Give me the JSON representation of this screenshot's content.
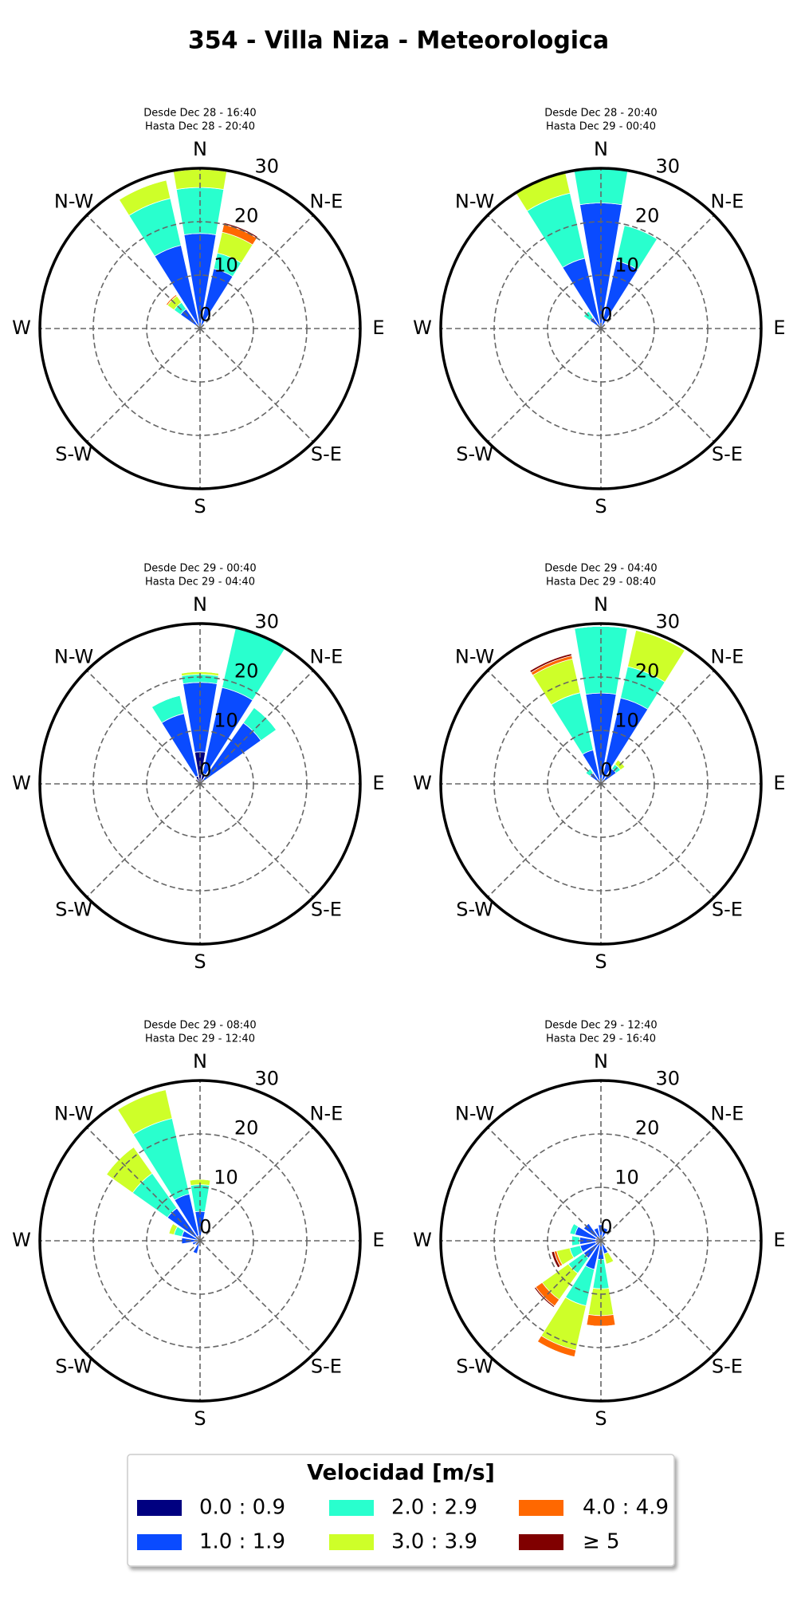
{
  "title": "354 - Villa Niza - Meteorologica",
  "legend": {
    "title": "Velocidad [m/s]",
    "series": [
      {
        "name": "0.0 : 0.9",
        "color": "#000080"
      },
      {
        "name": "1.0 : 1.9",
        "color": "#0a4bff"
      },
      {
        "name": "2.0 : 2.9",
        "color": "#29ffce"
      },
      {
        "name": "3.0 : 3.9",
        "color": "#ceff29"
      },
      {
        "name": "4.0 : 4.9",
        "color": "#ff6800"
      },
      {
        "name": "≥  5",
        "color": "#800000"
      }
    ]
  },
  "chart_data": [
    {
      "type": "windrose",
      "title": "Desde Dec 28 - 16:40",
      "subtitle": "Hasta Dec 28 - 20:40",
      "categories": [
        "N",
        null,
        "N-E",
        null,
        "E",
        null,
        "S-E",
        null,
        "S",
        null,
        "S-W",
        null,
        "W",
        null,
        "N-W",
        null
      ],
      "rlim": [
        0,
        30
      ],
      "rticks": [
        0,
        10,
        20,
        30
      ],
      "grid": true,
      "series": [
        {
          "values": [
            0.5,
            0.5,
            0,
            0,
            0,
            0,
            0,
            0,
            0,
            0,
            0,
            0,
            0,
            0,
            0.5,
            0.5
          ]
        },
        {
          "values": [
            17.3,
            11,
            0,
            0,
            0,
            0,
            0,
            0,
            0,
            0,
            0,
            0,
            0,
            0,
            4,
            15.5
          ]
        },
        {
          "values": [
            8.6,
            3,
            0,
            0,
            0,
            0,
            0,
            0,
            0,
            0,
            0,
            0,
            0,
            0,
            1.5,
            9
          ]
        },
        {
          "values": [
            3.4,
            4,
            0,
            0,
            0,
            0,
            0,
            0,
            0,
            0,
            0,
            0,
            0,
            0,
            1.5,
            3.5
          ]
        },
        {
          "values": [
            0,
            1.5,
            0,
            0,
            0,
            0,
            0,
            0,
            0,
            0,
            0,
            0,
            0,
            0,
            0.3,
            0
          ]
        },
        {
          "values": [
            0,
            0.3,
            0,
            0,
            0,
            0,
            0,
            0,
            0,
            0,
            0,
            0,
            0,
            0,
            0,
            0
          ]
        }
      ]
    },
    {
      "type": "windrose",
      "title": "Desde Dec 28 - 20:40",
      "subtitle": "Hasta Dec 29 - 00:40",
      "categories": [
        "N",
        null,
        "N-E",
        null,
        "E",
        null,
        "S-E",
        null,
        "S",
        null,
        "S-W",
        null,
        "W",
        null,
        "N-W",
        null
      ],
      "rlim": [
        0,
        30
      ],
      "rticks": [
        0,
        10,
        20,
        30
      ],
      "grid": true,
      "series": [
        {
          "values": [
            0.5,
            0.5,
            0,
            0,
            0,
            0,
            0,
            0,
            0,
            0,
            0,
            0,
            0,
            0,
            0.5,
            0.5
          ]
        },
        {
          "values": [
            23,
            12.5,
            0,
            0,
            0,
            0,
            0,
            0,
            0,
            0,
            0,
            0,
            0,
            0,
            2,
            13
          ]
        },
        {
          "values": [
            6.5,
            6.8,
            0,
            0,
            0,
            0,
            0,
            0,
            0,
            0,
            0,
            0,
            0,
            0,
            1.5,
            12.5
          ]
        },
        {
          "values": [
            0,
            0,
            0,
            0,
            0,
            0,
            0,
            0,
            0,
            0,
            0,
            0,
            0,
            0,
            0,
            4
          ]
        },
        {
          "values": [
            0,
            0,
            0,
            0,
            0,
            0,
            0,
            0,
            0,
            0,
            0,
            0,
            0,
            0,
            0,
            0
          ]
        },
        {
          "values": [
            0,
            0,
            0,
            0,
            0,
            0,
            0,
            0,
            0,
            0,
            0,
            0,
            0,
            0,
            0,
            0
          ]
        }
      ]
    },
    {
      "type": "windrose",
      "title": "Desde Dec 29 - 00:40",
      "subtitle": "Hasta Dec 29 - 04:40",
      "categories": [
        "N",
        null,
        "N-E",
        null,
        "E",
        null,
        "S-E",
        null,
        "S",
        null,
        "S-W",
        null,
        "W",
        null,
        "N-W",
        null
      ],
      "rlim": [
        0,
        30
      ],
      "rticks": [
        0,
        10,
        20,
        30
      ],
      "grid": true,
      "series": [
        {
          "values": [
            6,
            2,
            1,
            0,
            0,
            0,
            0,
            0,
            0,
            0,
            0,
            0,
            0,
            0,
            0,
            1.5
          ]
        },
        {
          "values": [
            13,
            16.5,
            13,
            0,
            0,
            0,
            0,
            0,
            0,
            0,
            0,
            0,
            0,
            0,
            0,
            12
          ]
        },
        {
          "values": [
            1.5,
            11.5,
            3.5,
            0,
            0,
            0,
            0,
            0,
            0,
            0,
            0,
            0,
            0,
            0,
            0,
            3.5
          ]
        },
        {
          "values": [
            0.5,
            0,
            0,
            0,
            0,
            0,
            0,
            0,
            0,
            0,
            0,
            0,
            0,
            0,
            0,
            0
          ]
        },
        {
          "values": [
            0,
            0,
            0,
            0,
            0,
            0,
            0,
            0,
            0,
            0,
            0,
            0,
            0,
            0,
            0,
            0
          ]
        },
        {
          "values": [
            0,
            0,
            0,
            0,
            0,
            0,
            0,
            0,
            0,
            0,
            0,
            0,
            0,
            0,
            0,
            0
          ]
        }
      ]
    },
    {
      "type": "windrose",
      "title": "Desde Dec 29 - 04:40",
      "subtitle": "Hasta Dec 29 - 08:40",
      "categories": [
        "N",
        null,
        "N-E",
        null,
        "E",
        null,
        "S-E",
        null,
        "S",
        null,
        "S-W",
        null,
        "W",
        null,
        "N-W",
        null
      ],
      "rlim": [
        0,
        30
      ],
      "rticks": [
        0,
        10,
        20,
        30
      ],
      "grid": true,
      "series": [
        {
          "values": [
            0.5,
            0.5,
            0.5,
            0,
            0,
            0,
            0,
            0,
            0,
            0,
            0,
            0,
            0,
            0,
            0.5,
            0.5
          ]
        },
        {
          "values": [
            16.5,
            16,
            3,
            0,
            0,
            0,
            0,
            0,
            0,
            0,
            0,
            0,
            0,
            0,
            2,
            6
          ]
        },
        {
          "values": [
            12.5,
            6,
            1,
            0,
            0,
            0,
            0,
            0,
            0,
            0,
            0,
            0,
            0,
            0,
            1,
            11
          ]
        },
        {
          "values": [
            0,
            7,
            1,
            0,
            0,
            0,
            0,
            0,
            0,
            0,
            0,
            0,
            0,
            0,
            0,
            6.5
          ]
        },
        {
          "values": [
            0,
            0,
            0,
            0,
            0,
            0,
            0,
            0,
            0,
            0,
            0,
            0,
            0,
            0,
            0,
            0.6
          ]
        },
        {
          "values": [
            0,
            0,
            0,
            0,
            0,
            0,
            0,
            0,
            0,
            0,
            0,
            0,
            0,
            0,
            0,
            0.4
          ]
        }
      ]
    },
    {
      "type": "windrose",
      "title": "Desde Dec 29 - 08:40",
      "subtitle": "Hasta Dec 29 - 12:40",
      "categories": [
        "N",
        null,
        "N-E",
        null,
        "E",
        null,
        "S-E",
        null,
        "S",
        null,
        "S-W",
        null,
        "W",
        null,
        "N-W",
        null
      ],
      "rlim": [
        0,
        30
      ],
      "rticks": [
        0,
        10,
        20,
        30
      ],
      "grid": true,
      "series": [
        {
          "values": [
            0.5,
            0,
            0,
            0,
            0,
            0,
            0,
            0,
            0,
            0.5,
            0,
            0,
            0.5,
            0.5,
            1,
            1
          ]
        },
        {
          "values": [
            5,
            0,
            0,
            0,
            0,
            0,
            0,
            0,
            0,
            2,
            0,
            1.5,
            3,
            3,
            6.5,
            8
          ]
        },
        {
          "values": [
            5,
            0,
            0,
            0,
            0,
            0,
            0,
            0,
            0,
            0,
            0,
            0,
            0,
            1.5,
            8,
            14.5
          ]
        },
        {
          "values": [
            1,
            0,
            0,
            0,
            0,
            0,
            0,
            0,
            0,
            0,
            0,
            0,
            0,
            1,
            6,
            5.5
          ]
        },
        {
          "values": [
            0,
            0,
            0,
            0,
            0,
            0,
            0,
            0,
            0,
            0,
            0,
            0,
            0,
            0,
            0,
            0
          ]
        },
        {
          "values": [
            0,
            0,
            0,
            0,
            0,
            0,
            0,
            0,
            0,
            0,
            0,
            0,
            0,
            0,
            0,
            0
          ]
        }
      ]
    },
    {
      "type": "windrose",
      "title": "Desde Dec 29 - 12:40",
      "subtitle": "Hasta Dec 29 - 16:40",
      "categories": [
        "N",
        null,
        "N-E",
        null,
        "E",
        null,
        "S-E",
        null,
        "S",
        null,
        "S-W",
        null,
        "W",
        null,
        "N-W",
        null
      ],
      "rlim": [
        0,
        30
      ],
      "rticks": [
        0,
        10,
        20,
        30
      ],
      "grid": true,
      "series": [
        {
          "values": [
            1,
            0.5,
            0,
            0,
            0,
            0,
            0,
            0.5,
            0.5,
            0.5,
            0.5,
            1,
            1,
            1,
            1,
            0.5
          ]
        },
        {
          "values": [
            2,
            2,
            0,
            0,
            0,
            0,
            1,
            2,
            3,
            5,
            3.5,
            3,
            3,
            4,
            3,
            2
          ]
        },
        {
          "values": [
            0,
            0,
            0,
            0,
            0,
            0,
            0,
            0,
            5.5,
            7,
            3.5,
            2,
            1.5,
            1,
            0,
            0
          ]
        },
        {
          "values": [
            0,
            0,
            0,
            0,
            0,
            0,
            0,
            2,
            5,
            8.5,
            6,
            2.5,
            0,
            0,
            0,
            0
          ]
        },
        {
          "values": [
            0,
            0,
            0,
            0,
            0,
            0,
            0,
            0,
            2,
            1.3,
            1.5,
            0.5,
            0,
            0,
            0,
            0
          ]
        },
        {
          "values": [
            0,
            0,
            0,
            0,
            0,
            0,
            0,
            0,
            0,
            0,
            0.3,
            0.5,
            0,
            0,
            0,
            0
          ]
        }
      ]
    }
  ]
}
